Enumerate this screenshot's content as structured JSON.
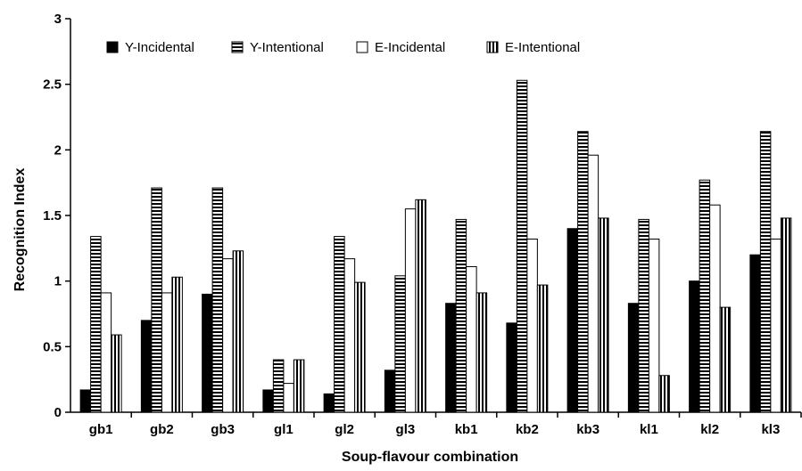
{
  "chart_data": {
    "type": "bar",
    "xlabel": "Soup-flavour combination",
    "ylabel": "Recognition Index",
    "ylim": [
      0,
      3
    ],
    "yticks": [
      "0",
      "0.5",
      "1",
      "1.5",
      "2",
      "2.5",
      "3"
    ],
    "grid": false,
    "legend_position": "top-left",
    "categories": [
      "gb1",
      "gb2",
      "gb3",
      "gl1",
      "gl2",
      "gl3",
      "kb1",
      "kb2",
      "kb3",
      "kl1",
      "kl2",
      "kl3"
    ],
    "series": [
      {
        "name": "Y-Incidental",
        "pattern": "solid",
        "values": [
          0.17,
          0.7,
          0.9,
          0.17,
          0.14,
          0.32,
          0.83,
          0.68,
          1.4,
          0.83,
          1.0,
          1.2
        ]
      },
      {
        "name": "Y-Intentional",
        "pattern": "horizontal-stripes",
        "values": [
          1.34,
          1.71,
          1.71,
          0.4,
          1.34,
          1.04,
          1.47,
          2.53,
          2.14,
          1.47,
          1.77,
          2.14
        ]
      },
      {
        "name": "E-Incidental",
        "pattern": "empty",
        "values": [
          0.91,
          0.91,
          1.17,
          0.22,
          1.17,
          1.55,
          1.11,
          1.32,
          1.96,
          1.32,
          1.58,
          1.32
        ]
      },
      {
        "name": "E-Intentional",
        "pattern": "vertical-stripes",
        "values": [
          0.59,
          1.03,
          1.23,
          0.4,
          0.99,
          1.62,
          0.91,
          0.97,
          1.48,
          0.28,
          0.8,
          1.48
        ]
      }
    ]
  }
}
